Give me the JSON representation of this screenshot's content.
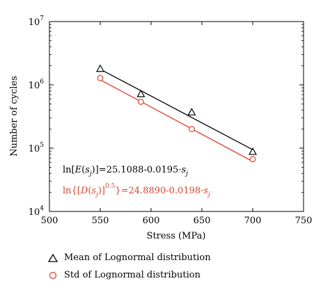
{
  "chart_data": {
    "type": "scatter",
    "xlabel": "Stress (MPa)",
    "ylabel": "Number of cycles",
    "xlim": [
      500,
      750
    ],
    "ylim": [
      10000,
      10000000
    ],
    "yscale": "log",
    "xticks": [
      "500",
      "550",
      "600",
      "650",
      "700",
      "750"
    ],
    "yticks": [
      {
        "base": "10",
        "exp": "4",
        "value": 10000
      },
      {
        "base": "10",
        "exp": "5",
        "value": 100000
      },
      {
        "base": "10",
        "exp": "6",
        "value": 1000000
      },
      {
        "base": "10",
        "exp": "7",
        "value": 10000000
      }
    ],
    "series": [
      {
        "name": "Mean of Lognormal distribution",
        "marker": "triangle",
        "color": "#000000",
        "x": [
          550,
          590,
          640,
          700
        ],
        "y": [
          1800000,
          720000,
          370000,
          88000
        ],
        "fit": {
          "intercept": 25.1088,
          "slope": -0.0195,
          "x": [
            550,
            700
          ]
        }
      },
      {
        "name": "Std of Lognormal distribution",
        "marker": "circle",
        "color": "#e2402c",
        "x": [
          550,
          590,
          640,
          700
        ],
        "y": [
          1280000,
          540000,
          200000,
          67000
        ],
        "fit": {
          "intercept": 24.889,
          "slope": -0.0198,
          "x": [
            550,
            700
          ]
        }
      }
    ],
    "annotations": {
      "mean_eq": {
        "pre": "ln[",
        "fn": "E",
        "mid1": "(",
        "var": "s",
        "sub": "j",
        "mid2": ")]=25.1088-0.0195·",
        "var2": "s",
        "sub2": "j"
      },
      "std_eq": {
        "pre": "ln{[",
        "fn": "D",
        "mid1": "(",
        "var": "s",
        "sub": "j",
        "mid2": ")]",
        "sup": "0.5",
        "mid3": "}=24.8890-0.0198·",
        "var2": "s",
        "sub2": "j"
      }
    }
  },
  "legend": {
    "items": [
      {
        "label": "Mean of Lognormal distribution"
      },
      {
        "label": "Std of Lognormal distribution"
      }
    ]
  }
}
